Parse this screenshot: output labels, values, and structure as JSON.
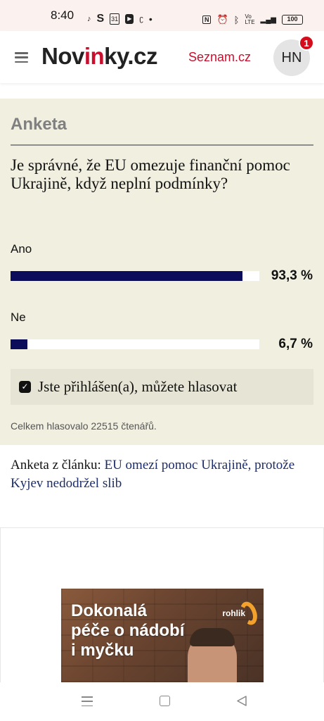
{
  "status_bar": {
    "time": "8:40",
    "left_icons": [
      "tiktok-icon",
      "s-icon",
      "calendar-31-icon",
      "youtube-icon",
      "c-icon",
      "dot-icon"
    ],
    "battery": "100"
  },
  "header": {
    "logo_prefix": "Nov",
    "logo_red": "in",
    "logo_suffix": "ky.cz",
    "partner_link": "Seznam.cz",
    "avatar_initials": "HN",
    "notification_count": "1"
  },
  "poll": {
    "title": "Anketa",
    "question": "Je správné, že EU omezuje finanční pomoc Ukrajině, když neplní podmínky?",
    "options": [
      {
        "label": "Ano",
        "percent_text": "93,3 %",
        "fraction": 0.933
      },
      {
        "label": "Ne",
        "percent_text": "6,7 %",
        "fraction": 0.067
      }
    ],
    "voted_message": "Jste přihlášen(a), můžete hlasovat",
    "total_votes": "Celkem hlasovalo 22515 čtenářů."
  },
  "article": {
    "prefix": "Anketa z článku: ",
    "link_text": "EU omezí pomoc Ukrajině, protože Kyjev nedodržel slib"
  },
  "ad": {
    "headline_line1": "Dokonalá",
    "headline_line2": "péče o nádobí",
    "headline_line3": "i myčku",
    "brand": "rohlik"
  },
  "colors": {
    "poll_background": "#f1efe0",
    "bar_fill": "#0b0c5a",
    "accent_red": "#c8102e",
    "link_blue": "#1b2c6b"
  }
}
